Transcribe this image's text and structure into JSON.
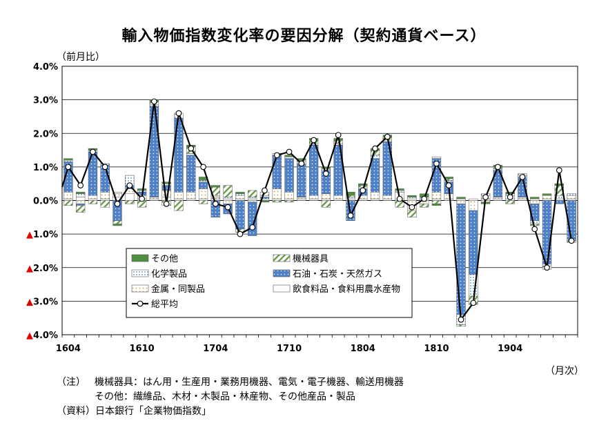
{
  "chart_data": {
    "type": "bar",
    "title": "輸入物価指数変化率の要因分解（契約通貨ベース）",
    "ylabel": "（前月比）",
    "xlabel": "（月次）",
    "ylim": [
      -4.0,
      4.0
    ],
    "y_ticks": [
      "4.0%",
      "3.0%",
      "2.0%",
      "1.0%",
      "0.0%",
      "▲1.0%",
      "▲2.0%",
      "▲3.0%",
      "▲4.0%"
    ],
    "x_tick_labels": [
      "1604",
      "1610",
      "1704",
      "1710",
      "1804",
      "1810",
      "1904"
    ],
    "x_tick_positions": [
      0,
      6,
      12,
      18,
      24,
      30,
      36
    ],
    "categories": [
      "1604",
      "1605",
      "1606",
      "1607",
      "1608",
      "1609",
      "1610",
      "1611",
      "1612",
      "1701",
      "1702",
      "1703",
      "1704",
      "1705",
      "1706",
      "1707",
      "1708",
      "1709",
      "1710",
      "1711",
      "1712",
      "1801",
      "1802",
      "1803",
      "1804",
      "1805",
      "1806",
      "1807",
      "1808",
      "1809",
      "1810",
      "1811",
      "1812",
      "1901",
      "1902",
      "1903",
      "1904",
      "1905",
      "1906",
      "1907",
      "1908",
      "1909"
    ],
    "legend_position": "bottom-left inside plot",
    "grid": true,
    "series": [
      {
        "name": "その他",
        "color": "#4f8f3f",
        "pattern": "solid",
        "values": [
          0.05,
          0.05,
          0.05,
          0.0,
          -0.05,
          0.0,
          0.05,
          0.05,
          0.05,
          0.0,
          0.05,
          0.1,
          0.05,
          0.0,
          0.05,
          0.0,
          -0.05,
          0.0,
          0.05,
          0.05,
          0.05,
          0.05,
          0.05,
          0.1,
          0.05,
          0.05,
          0.05,
          0.05,
          0.05,
          0.1,
          -0.05,
          0.05,
          0.05,
          0.0,
          -0.05,
          0.05,
          0.05,
          0.0,
          0.05,
          0.05,
          0.05,
          0.0
        ]
      },
      {
        "name": "機械器具",
        "color": "#6a9a4a",
        "pattern": "hatch",
        "values": [
          -0.15,
          -0.2,
          -0.1,
          -0.2,
          -0.1,
          -0.1,
          -0.2,
          0.1,
          -0.15,
          -0.3,
          0.2,
          -0.1,
          0.25,
          0.35,
          -0.1,
          0.2,
          0.1,
          -0.05,
          -0.05,
          0.05,
          0.1,
          -0.2,
          0.1,
          0.05,
          0.05,
          0.15,
          0.1,
          -0.2,
          -0.2,
          -0.1,
          -0.1,
          0.05,
          -0.05,
          -0.25,
          -0.05,
          0.05,
          -0.1,
          0.05,
          -0.05,
          -0.1,
          0.3,
          -0.05
        ]
      },
      {
        "name": "化学製品",
        "color": "#4f81c7",
        "pattern": "dots-light",
        "values": [
          0.05,
          0.1,
          0.05,
          0.05,
          0.05,
          0.3,
          0.05,
          0.05,
          0.05,
          0.15,
          0.05,
          0.05,
          0.05,
          0.05,
          0.05,
          0.05,
          0.05,
          0.05,
          0.05,
          0.05,
          0.05,
          0.05,
          0.05,
          0.05,
          0.05,
          0.1,
          0.05,
          0.05,
          0.05,
          0.05,
          0.05,
          0.05,
          -0.3,
          -0.65,
          0.05,
          0.05,
          0.05,
          0.05,
          -0.1,
          -0.05,
          0.1,
          0.05
        ]
      },
      {
        "name": "石油・石炭・天然ガス",
        "color": "#4f81c7",
        "pattern": "dots-dense",
        "values": [
          0.9,
          -0.05,
          1.3,
          0.8,
          -0.6,
          0.1,
          0.1,
          2.7,
          0.15,
          2.2,
          1.1,
          0.2,
          -0.5,
          -0.3,
          -0.85,
          -1.0,
          0.05,
          1.0,
          1.0,
          1.0,
          1.5,
          0.7,
          1.5,
          -0.6,
          0.2,
          1.0,
          1.6,
          0.0,
          0.0,
          0.0,
          1.0,
          0.35,
          -3.3,
          -1.9,
          0.0,
          0.8,
          0.0,
          0.6,
          -0.5,
          -1.9,
          -0.1,
          -1.2
        ]
      },
      {
        "name": "金属・同製品",
        "color": "#e8c47a",
        "pattern": "dots-sparse",
        "values": [
          0.2,
          -0.1,
          0.1,
          0.2,
          0.1,
          0.15,
          0.1,
          0.05,
          0.2,
          0.2,
          0.2,
          0.3,
          0.05,
          -0.1,
          0.1,
          -0.05,
          0.0,
          0.3,
          0.2,
          0.05,
          0.1,
          0.15,
          0.1,
          0.0,
          0.1,
          0.2,
          0.1,
          0.2,
          -0.3,
          -0.1,
          0.2,
          0.15,
          -0.1,
          -0.3,
          0.1,
          0.05,
          0.1,
          0.05,
          -0.1,
          0.1,
          0.0,
          0.1
        ]
      },
      {
        "name": "飲食料品・食料用農水産物",
        "color": "#ffffff",
        "pattern": "plain",
        "values": [
          0.05,
          0.1,
          0.05,
          0.05,
          0.1,
          0.2,
          0.05,
          0.05,
          0.1,
          0.05,
          0.05,
          0.05,
          0.05,
          0.05,
          0.05,
          0.05,
          0.05,
          0.05,
          0.05,
          0.05,
          0.05,
          0.05,
          0.05,
          0.05,
          0.05,
          0.05,
          0.05,
          0.05,
          0.05,
          0.05,
          0.05,
          0.05,
          0.05,
          0.05,
          0.05,
          0.05,
          0.05,
          0.05,
          0.05,
          0.05,
          0.05,
          0.05
        ]
      },
      {
        "name": "総平均",
        "color": "#000000",
        "pattern": "line-marker",
        "values": [
          1.0,
          0.45,
          1.45,
          1.0,
          -0.1,
          0.45,
          0.05,
          2.95,
          -0.1,
          2.6,
          1.55,
          1.0,
          -0.1,
          -0.2,
          -1.0,
          -0.8,
          0.3,
          1.35,
          1.45,
          1.1,
          1.8,
          0.8,
          1.95,
          -0.45,
          0.3,
          1.55,
          1.9,
          0.05,
          -0.2,
          0.05,
          1.1,
          0.45,
          -3.55,
          -3.05,
          0.1,
          1.0,
          0.1,
          0.7,
          -0.85,
          -2.0,
          0.9,
          -1.2
        ]
      }
    ]
  },
  "notes": {
    "note1_head": "（注）",
    "note1_body": "機械器具：はん用・生産用・業務用機器、電気・電子機器、輸送用機器",
    "note2_body": "その他：繊維品、木材・木製品・林産物、その他産品・製品",
    "source": "（資料）日本銀行「企業物価指数」"
  }
}
